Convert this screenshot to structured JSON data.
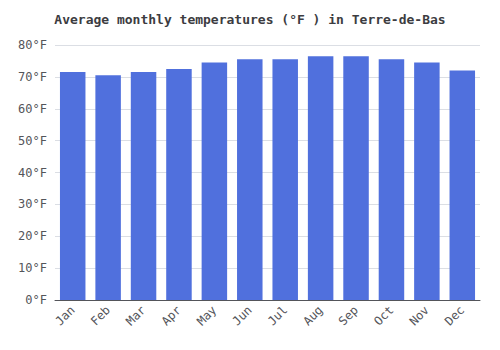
{
  "chart_data": {
    "type": "bar",
    "title": "Average monthly temperatures (°F ) in Terre-de-Bas",
    "categories": [
      "Jan",
      "Feb",
      "Mar",
      "Apr",
      "May",
      "Jun",
      "Jul",
      "Aug",
      "Sep",
      "Oct",
      "Nov",
      "Dec"
    ],
    "values": [
      71.5,
      70.5,
      71.5,
      72.5,
      74.5,
      75.5,
      75.5,
      76.5,
      76.5,
      75.5,
      74.5,
      72.0
    ],
    "ylim": [
      0,
      80
    ],
    "yticks": [
      {
        "value": 0,
        "label": "0°F"
      },
      {
        "value": 10,
        "label": "10°F"
      },
      {
        "value": 20,
        "label": "20°F"
      },
      {
        "value": 30,
        "label": "30°F"
      },
      {
        "value": 40,
        "label": "40°F"
      },
      {
        "value": 50,
        "label": "50°F"
      },
      {
        "value": 60,
        "label": "60°F"
      },
      {
        "value": 70,
        "label": "70°F"
      },
      {
        "value": 80,
        "label": "80°F"
      }
    ],
    "grid": true
  }
}
